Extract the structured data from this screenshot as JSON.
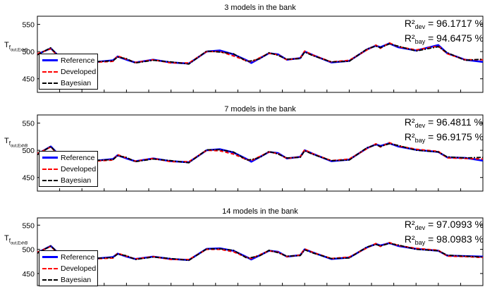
{
  "chart_data": [
    {
      "type": "line",
      "title": "3 models in the bank",
      "ylabel": "T_{f_{out,ExhB}}",
      "ylim": [
        425,
        565
      ],
      "yticks": [
        450,
        500,
        550
      ],
      "xlabel": "",
      "legend": {
        "placement": "bottom-left",
        "entries": [
          "Reference",
          "Developed",
          "Bayesian"
        ]
      },
      "annotations": {
        "r2dev": {
          "symbol": "R²",
          "sub": "dev",
          "value": "= 96.1717 %"
        },
        "r2bay": {
          "symbol": "R²",
          "sub": "bay",
          "value": "= 94.6475 %"
        }
      },
      "x": [
        0,
        3,
        6,
        9,
        12,
        17,
        18,
        20,
        22,
        26,
        30,
        34,
        38,
        41,
        44,
        47,
        48,
        50,
        52,
        54,
        56,
        59,
        60,
        62,
        66,
        70,
        74,
        76,
        77,
        79,
        81,
        85,
        90,
        92,
        96,
        100
      ],
      "series": [
        {
          "name": "Reference",
          "color": "#0000ff",
          "values": [
            495,
            506,
            482,
            478,
            480,
            484,
            491,
            485,
            480,
            485,
            480,
            478,
            500,
            502,
            495,
            484,
            479,
            488,
            497,
            495,
            485,
            488,
            500,
            493,
            480,
            483,
            504,
            511,
            508,
            515,
            508,
            502,
            512,
            497,
            485,
            481
          ]
        },
        {
          "name": "Developed",
          "color": "#ff0000",
          "values": [
            496,
            505,
            481,
            478,
            480,
            482,
            492,
            486,
            480,
            485,
            479,
            479,
            500,
            500,
            492,
            483,
            481,
            489,
            497,
            494,
            485,
            488,
            501,
            493,
            481,
            484,
            503,
            512,
            506,
            516,
            509,
            503,
            510,
            496,
            485,
            485
          ]
        },
        {
          "name": "Bayesian",
          "color": "#000000",
          "values": [
            494,
            507,
            480,
            477,
            481,
            483,
            490,
            487,
            479,
            484,
            481,
            477,
            501,
            499,
            496,
            482,
            483,
            487,
            498,
            493,
            486,
            487,
            499,
            492,
            481,
            482,
            505,
            510,
            507,
            514,
            510,
            501,
            509,
            498,
            484,
            486
          ]
        }
      ]
    },
    {
      "type": "line",
      "title": "7 models in the bank",
      "ylabel": "T_{f_{out,ExhB}}",
      "ylim": [
        425,
        565
      ],
      "yticks": [
        450,
        500,
        550
      ],
      "xlabel": "",
      "legend": {
        "placement": "bottom-left",
        "entries": [
          "Reference",
          "Developed",
          "Bayesian"
        ]
      },
      "annotations": {
        "r2dev": {
          "symbol": "R²",
          "sub": "dev",
          "value": "= 96.4811 %"
        },
        "r2bay": {
          "symbol": "R²",
          "sub": "bay",
          "value": "= 96.9175 %"
        }
      },
      "x": [
        0,
        3,
        6,
        9,
        12,
        17,
        18,
        20,
        22,
        26,
        30,
        34,
        38,
        41,
        44,
        47,
        48,
        50,
        52,
        54,
        56,
        59,
        60,
        62,
        66,
        70,
        74,
        76,
        77,
        79,
        81,
        85,
        90,
        92,
        96,
        100
      ],
      "series": [
        {
          "name": "Reference",
          "color": "#0000ff",
          "values": [
            493,
            507,
            482,
            478,
            480,
            484,
            491,
            485,
            480,
            485,
            480,
            478,
            500,
            502,
            496,
            484,
            479,
            488,
            497,
            495,
            485,
            488,
            500,
            493,
            480,
            483,
            504,
            511,
            508,
            513,
            507,
            501,
            497,
            487,
            486,
            481
          ]
        },
        {
          "name": "Developed",
          "color": "#ff0000",
          "values": [
            494,
            506,
            481,
            478,
            480,
            482,
            492,
            486,
            480,
            485,
            479,
            479,
            500,
            499,
            493,
            483,
            481,
            489,
            497,
            494,
            485,
            488,
            501,
            493,
            481,
            484,
            503,
            512,
            506,
            514,
            508,
            502,
            498,
            486,
            485,
            484
          ]
        },
        {
          "name": "Bayesian",
          "color": "#000000",
          "values": [
            492,
            507,
            480,
            477,
            481,
            483,
            490,
            487,
            479,
            484,
            481,
            477,
            501,
            501,
            497,
            482,
            483,
            487,
            498,
            493,
            486,
            487,
            499,
            492,
            481,
            482,
            505,
            510,
            507,
            512,
            509,
            500,
            497,
            488,
            486,
            487
          ]
        }
      ]
    },
    {
      "type": "line",
      "title": "14 models in the bank",
      "ylabel": "T_{f_{out,ExhB}}",
      "ylim": [
        425,
        565
      ],
      "yticks": [
        450,
        500,
        550
      ],
      "xlabel": "",
      "legend": {
        "placement": "bottom-left",
        "entries": [
          "Reference",
          "Developed",
          "Bayesian"
        ]
      },
      "annotations": {
        "r2dev": {
          "symbol": "R²",
          "sub": "dev",
          "value": "= 97.0993 %"
        },
        "r2bay": {
          "symbol": "R²",
          "sub": "bay",
          "value": "= 98.0983 %"
        }
      },
      "x": [
        0,
        3,
        6,
        9,
        12,
        17,
        18,
        20,
        22,
        26,
        30,
        34,
        38,
        41,
        44,
        47,
        48,
        50,
        52,
        54,
        56,
        59,
        60,
        62,
        66,
        70,
        74,
        76,
        77,
        79,
        81,
        85,
        90,
        92,
        96,
        100
      ],
      "series": [
        {
          "name": "Reference",
          "color": "#0000ff",
          "values": [
            493,
            507,
            481,
            478,
            480,
            484,
            491,
            485,
            480,
            485,
            480,
            478,
            501,
            502,
            497,
            484,
            479,
            488,
            497,
            495,
            485,
            488,
            500,
            493,
            480,
            483,
            504,
            511,
            508,
            513,
            507,
            501,
            497,
            487,
            486,
            485
          ]
        },
        {
          "name": "Developed",
          "color": "#ff0000",
          "values": [
            494,
            506,
            480,
            478,
            480,
            482,
            492,
            486,
            480,
            485,
            479,
            479,
            500,
            500,
            495,
            483,
            481,
            489,
            497,
            494,
            485,
            488,
            501,
            493,
            481,
            484,
            503,
            512,
            506,
            514,
            508,
            502,
            498,
            486,
            485,
            483
          ]
        },
        {
          "name": "Bayesian",
          "color": "#000000",
          "values": [
            492,
            507,
            481,
            477,
            481,
            483,
            490,
            487,
            479,
            484,
            481,
            477,
            501,
            501,
            498,
            482,
            483,
            487,
            498,
            493,
            486,
            487,
            499,
            492,
            481,
            482,
            505,
            510,
            507,
            512,
            509,
            500,
            497,
            488,
            486,
            484
          ]
        }
      ]
    }
  ]
}
